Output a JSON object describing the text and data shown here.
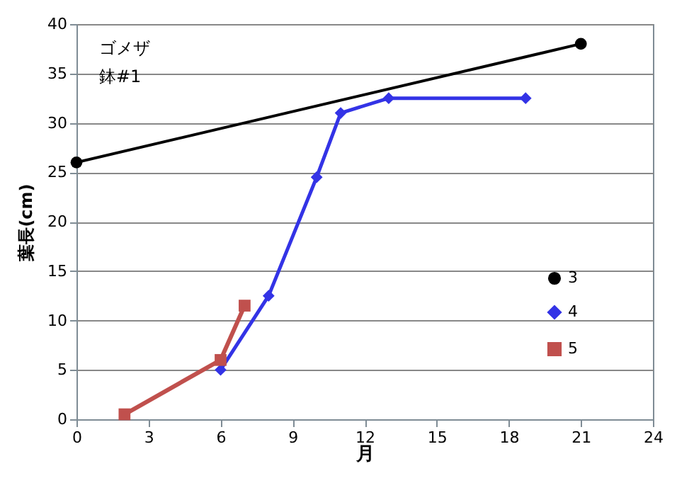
{
  "chart_data": {
    "type": "line",
    "xlabel": "月",
    "ylabel": "葉長(cm)",
    "annotations": [
      "ゴメザ",
      "鉢#1"
    ],
    "xlim": [
      0,
      24
    ],
    "xticks": [
      0,
      3,
      6,
      9,
      12,
      15,
      18,
      21,
      24
    ],
    "ylim": [
      0,
      40
    ],
    "yticks": [
      0,
      5,
      10,
      15,
      20,
      25,
      30,
      35,
      40
    ],
    "grid": "y",
    "legend": "right",
    "series": [
      {
        "name": "3",
        "color": "#000000",
        "marker": "circle",
        "x": [
          0,
          21
        ],
        "values": [
          26,
          38
        ]
      },
      {
        "name": "4",
        "color": "#3333e6",
        "marker": "diamond",
        "x": [
          6,
          8,
          10,
          11,
          13,
          18.7
        ],
        "values": [
          5,
          12.5,
          24.5,
          31,
          32.5,
          32.5
        ]
      },
      {
        "name": "5",
        "color": "#c0504d",
        "marker": "square",
        "x": [
          2,
          6,
          7
        ],
        "values": [
          0.5,
          6,
          11.5
        ]
      }
    ]
  }
}
